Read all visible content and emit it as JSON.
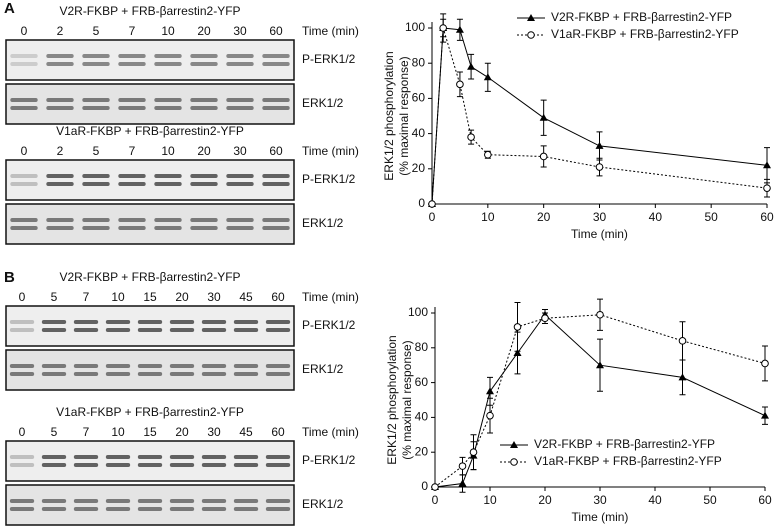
{
  "panel_labels": [
    "A",
    "B"
  ],
  "blots": [
    {
      "title": "V2R-FKBP + FRB-βarrestin2-YFP",
      "times": [
        "0",
        "2",
        "5",
        "7",
        "10",
        "20",
        "30",
        "60"
      ],
      "time_label": "Time (min)",
      "bands": [
        "P-ERK1/2",
        "ERK1/2"
      ]
    },
    {
      "title": "V1aR-FKBP + FRB-βarrestin2-YFP",
      "times": [
        "0",
        "2",
        "5",
        "7",
        "10",
        "20",
        "30",
        "60"
      ],
      "time_label": "Time (min)",
      "bands": [
        "P-ERK1/2",
        "ERK1/2"
      ]
    },
    {
      "title": "V2R-FKBP + FRB-βarrestin2-YFP",
      "times": [
        "0",
        "5",
        "7",
        "10",
        "15",
        "20",
        "30",
        "45",
        "60"
      ],
      "time_label": "Time (min)",
      "bands": [
        "P-ERK1/2",
        "ERK1/2"
      ]
    },
    {
      "title": "V1aR-FKBP + FRB-βarrestin2-YFP",
      "times": [
        "0",
        "5",
        "7",
        "10",
        "15",
        "20",
        "30",
        "45",
        "60"
      ],
      "time_label": "Time (min)",
      "bands": [
        "P-ERK1/2",
        "ERK1/2"
      ]
    }
  ],
  "chart_data": [
    {
      "type": "line",
      "x_label": "Time (min)",
      "y_label": [
        "ERK1/2 phosphorylation",
        "(% maximal response)"
      ],
      "x": [
        0,
        2,
        5,
        7,
        10,
        20,
        30,
        60
      ],
      "xlim": [
        0,
        60
      ],
      "xticks": [
        0,
        10,
        20,
        30,
        40,
        50,
        60
      ],
      "ylim": [
        0,
        100
      ],
      "yticks": [
        0,
        20,
        40,
        60,
        80,
        100
      ],
      "legend": "upper right",
      "series": [
        {
          "name": "V2R-FKBP + FRB-βarrestin2-YFP",
          "color": "#000000",
          "marker": "triangle",
          "linestyle": "solid",
          "values": [
            0,
            100,
            99,
            78,
            72,
            49,
            33,
            22
          ],
          "errors": [
            0,
            8,
            6,
            7,
            8,
            10,
            8,
            10
          ]
        },
        {
          "name": "V1aR-FKBP + FRB-βarrestin2-YFP",
          "color": "#000000",
          "marker": "circle",
          "linestyle": "dotted",
          "values": [
            0,
            100,
            68,
            38,
            28,
            27,
            21,
            9
          ],
          "errors": [
            0,
            5,
            7,
            4,
            2,
            6,
            5,
            5
          ]
        }
      ]
    },
    {
      "type": "line",
      "x_label": "Time (min)",
      "y_label": [
        "ERK1/2 phosphorylation",
        "(% maximal response)"
      ],
      "x": [
        0,
        5,
        7,
        10,
        15,
        20,
        30,
        45,
        60
      ],
      "xlim": [
        0,
        60
      ],
      "xticks": [
        0,
        10,
        20,
        30,
        40,
        50,
        60
      ],
      "ylim": [
        0,
        100
      ],
      "yticks": [
        0,
        20,
        40,
        60,
        80,
        100
      ],
      "legend": "lower right",
      "series": [
        {
          "name": "V2R-FKBP + FRB-βarrestin2-YFP",
          "color": "#000000",
          "marker": "triangle",
          "linestyle": "solid",
          "values": [
            0,
            2,
            18,
            55,
            77,
            99,
            70,
            63,
            41
          ],
          "errors": [
            0,
            5,
            8,
            8,
            12,
            3,
            15,
            10,
            5
          ]
        },
        {
          "name": "V1aR-FKBP + FRB-βarrestin2-YFP",
          "color": "#000000",
          "marker": "circle",
          "linestyle": "dotted",
          "values": [
            0,
            12,
            20,
            41,
            92,
            97,
            99,
            84,
            71
          ],
          "errors": [
            0,
            5,
            10,
            10,
            14,
            3,
            9,
            11,
            10
          ]
        }
      ]
    }
  ]
}
